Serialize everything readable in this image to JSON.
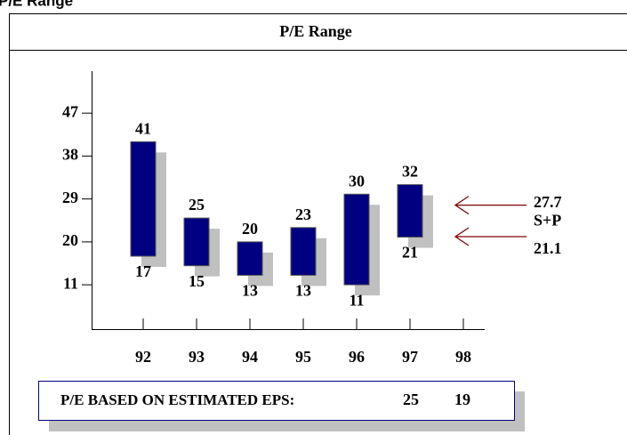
{
  "page_title": "P/E Range",
  "chart_data": {
    "type": "range_bar",
    "title": "P/E Range",
    "categories": [
      "92",
      "93",
      "94",
      "95",
      "96",
      "97",
      "98"
    ],
    "high": [
      41,
      25,
      20,
      23,
      30,
      32,
      null
    ],
    "low": [
      17,
      15,
      13,
      13,
      11,
      21,
      null
    ],
    "color": "#000080",
    "shadow_color": "#c0c0c0",
    "ylim": [
      1.7,
      55.8
    ],
    "yticks": [
      47,
      38,
      29,
      20,
      11
    ],
    "annotation": {
      "label": "S+P",
      "high": 27.7,
      "low": 21.1,
      "color": "#800000"
    },
    "footer": {
      "label": "P/E BASED ON ESTIMATED EPS:",
      "values": [
        25,
        19
      ]
    }
  }
}
